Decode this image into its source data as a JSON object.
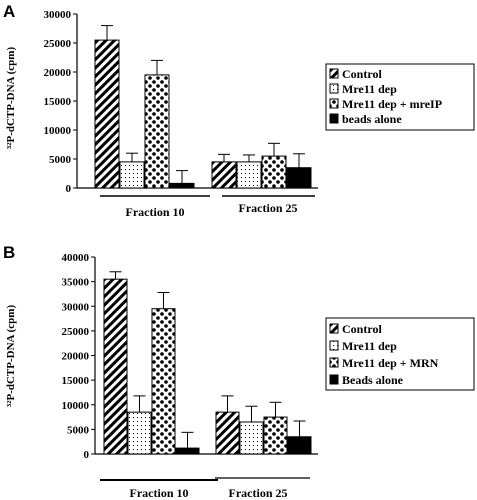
{
  "chart_data": [
    {
      "panel": "A",
      "type": "bar",
      "ylabel": "³²P-dCTP-DNA (cpm)",
      "ylim": [
        0,
        30000
      ],
      "yticks": [
        "0",
        "5000",
        "10000",
        "15000",
        "20000",
        "25000",
        "30000"
      ],
      "categories": [
        "Fraction 10",
        "Fraction 25"
      ],
      "series": [
        {
          "name": "Control",
          "pattern": "diag",
          "values": [
            25500,
            4500
          ],
          "errors": [
            2500,
            1300
          ]
        },
        {
          "name": "Mre11 dep",
          "pattern": "dots",
          "values": [
            4500,
            4500
          ],
          "errors": [
            1500,
            1200
          ]
        },
        {
          "name": "Mre11 dep + mreIP",
          "pattern": "check",
          "values": [
            19500,
            5500
          ],
          "errors": [
            2500,
            2200
          ]
        },
        {
          "name": "beads alone",
          "pattern": "solid",
          "values": [
            800,
            3500
          ],
          "errors": [
            2200,
            2400
          ]
        }
      ],
      "legend_position": "right"
    },
    {
      "panel": "B",
      "type": "bar",
      "ylabel": "³²P-dCTP-DNA (cpm)",
      "ylim": [
        0,
        40000
      ],
      "yticks": [
        "0",
        "5000",
        "10000",
        "15000",
        "20000",
        "25000",
        "30000",
        "35000",
        "40000"
      ],
      "categories": [
        "Fraction 10",
        "Fraction 25"
      ],
      "series": [
        {
          "name": "Control",
          "pattern": "diag",
          "values": [
            35500,
            8500
          ],
          "errors": [
            1500,
            3300
          ]
        },
        {
          "name": "Mre11 dep",
          "pattern": "dots",
          "values": [
            8500,
            6500
          ],
          "errors": [
            3300,
            3200
          ]
        },
        {
          "name": "Mre11 dep + MRN",
          "pattern": "check",
          "values": [
            29500,
            7500
          ],
          "errors": [
            3300,
            3000
          ]
        },
        {
          "name": "Beads alone",
          "pattern": "solid",
          "values": [
            1200,
            3500
          ],
          "errors": [
            3200,
            3200
          ]
        }
      ],
      "legend_position": "right"
    }
  ]
}
